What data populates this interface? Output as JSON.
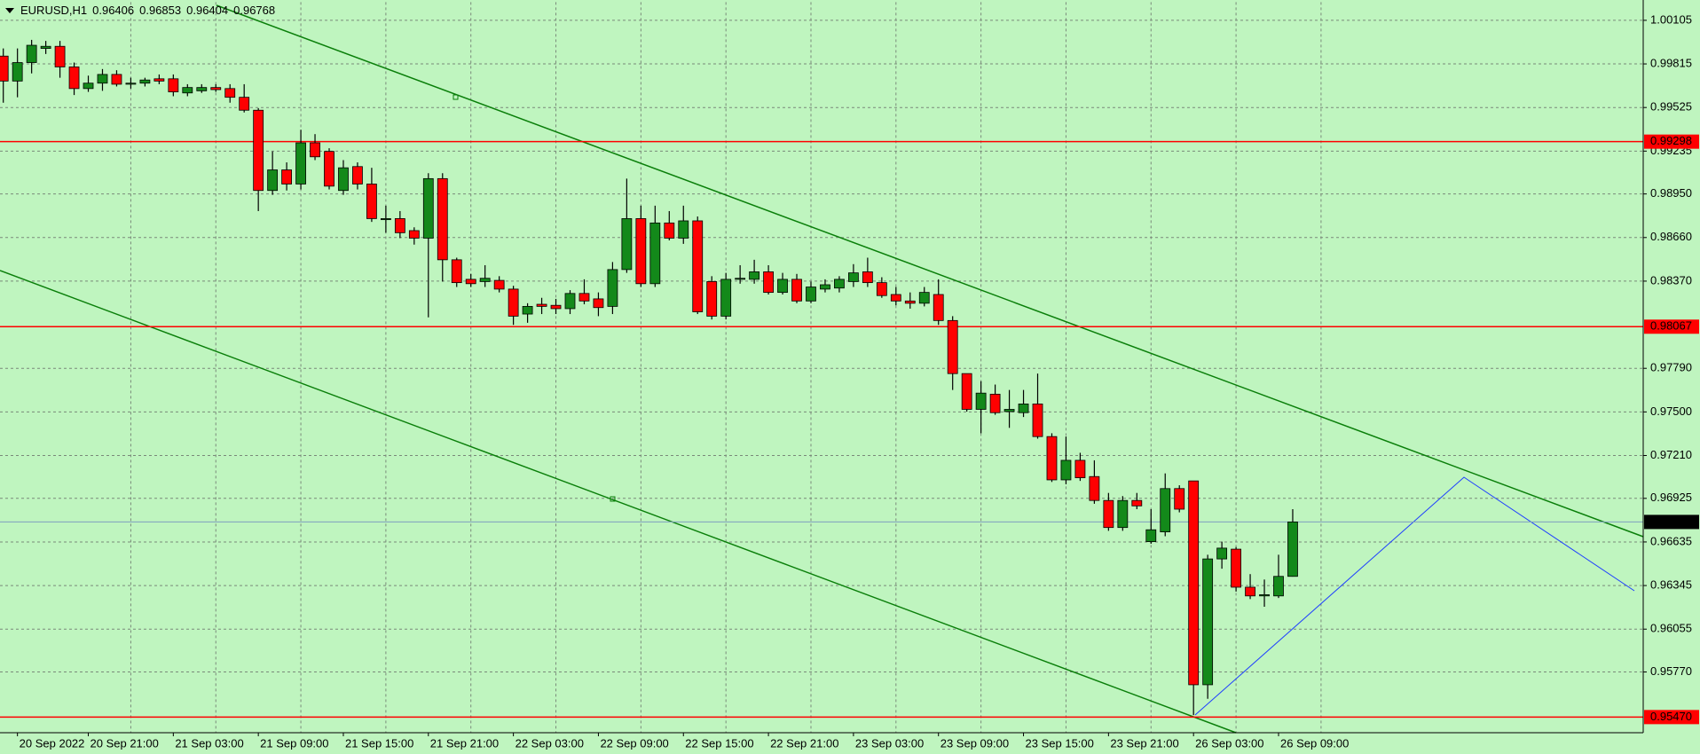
{
  "chart_data": {
    "type": "candlestick",
    "title": "EURUSD,H1",
    "categories": [
      null,
      "20 Sep 2022",
      null,
      null,
      null,
      null,
      "20 Sep 21:00",
      null,
      null,
      null,
      null,
      null,
      "21 Sep 03:00",
      null,
      null,
      null,
      null,
      null,
      "21 Sep 09:00",
      null,
      null,
      null,
      null,
      null,
      "21 Sep 15:00",
      null,
      null,
      null,
      null,
      null,
      "21 Sep 21:00",
      null,
      null,
      null,
      null,
      null,
      "22 Sep 03:00",
      null,
      null,
      null,
      null,
      null,
      "22 Sep 09:00",
      null,
      null,
      null,
      null,
      null,
      "22 Sep 15:00",
      null,
      null,
      null,
      null,
      null,
      "22 Sep 21:00",
      null,
      null,
      null,
      null,
      null,
      "23 Sep 03:00",
      null,
      null,
      null,
      null,
      null,
      "23 Sep 09:00",
      null,
      null,
      null,
      null,
      null,
      "23 Sep 15:00",
      null,
      null,
      null,
      null,
      null,
      "23 Sep 21:00",
      null,
      null,
      null,
      null,
      null,
      "26 Sep 03:00",
      null,
      null,
      null,
      null,
      null,
      "26 Sep 09:00",
      null
    ],
    "open": [
      0.99867,
      0.99701,
      0.99824,
      0.99918,
      0.99932,
      0.99795,
      0.99651,
      0.99687,
      0.99745,
      0.9968,
      0.99687,
      0.99716,
      0.99716,
      0.99622,
      0.99636,
      0.99658,
      0.99651,
      0.99593,
      0.99507,
      0.98973,
      0.9911,
      0.99016,
      0.9929,
      0.99233,
      0.98973,
      0.99132,
      0.99016,
      0.98786,
      0.98786,
      0.98706,
      0.98656,
      0.99052,
      0.98512,
      0.98382,
      0.98367,
      0.98375,
      0.98317,
      0.98151,
      0.98216,
      0.98209,
      0.98187,
      0.98288,
      0.98252,
      0.98202,
      0.98447,
      0.98786,
      0.98353,
      0.98757,
      0.98656,
      0.98771,
      0.98367,
      0.98137,
      0.98382,
      0.98382,
      0.98432,
      0.98295,
      0.98382,
      0.98238,
      0.98317,
      0.98324,
      0.98367,
      0.98432,
      0.9836,
      0.98281,
      0.98238,
      0.98223,
      0.98281,
      0.98108,
      0.97755,
      0.97517,
      0.97618,
      0.97502,
      0.97495,
      0.97553,
      0.97336,
      0.97048,
      0.97178,
      0.9707,
      0.96911,
      0.96731,
      0.96911,
      0.96637,
      0.96702,
      0.9699,
      0.97041,
      0.95685,
      0.96522,
      0.96587,
      0.96334,
      0.96276,
      0.96276,
      0.96406
    ],
    "high": [
      0.99918,
      0.99918,
      0.99975,
      0.99968,
      0.99968,
      0.99824,
      0.99737,
      0.99781,
      0.99773,
      0.99723,
      0.99723,
      0.99745,
      0.99745,
      0.9968,
      0.9968,
      0.9968,
      0.9968,
      0.9968,
      0.99521,
      0.99233,
      0.9916,
      0.99377,
      0.99348,
      0.99254,
      0.99175,
      0.9916,
      0.99124,
      0.98872,
      0.98836,
      0.98728,
      0.99088,
      0.99088,
      0.98526,
      0.98418,
      0.98476,
      0.98403,
      0.98339,
      0.98223,
      0.98259,
      0.98252,
      0.9831,
      0.98382,
      0.98295,
      0.98497,
      0.99052,
      0.98872,
      0.98872,
      0.98836,
      0.98872,
      0.988,
      0.98403,
      0.98425,
      0.98476,
      0.98512,
      0.98476,
      0.98425,
      0.98418,
      0.98367,
      0.98382,
      0.98403,
      0.98483,
      0.98526,
      0.98396,
      0.98331,
      0.98295,
      0.98331,
      0.98382,
      0.98137,
      0.97755,
      0.97704,
      0.97682,
      0.97646,
      0.97646,
      0.97755,
      0.97358,
      0.97336,
      0.97228,
      0.97178,
      0.96961,
      0.9694,
      0.96961,
      0.96853,
      0.97091,
      0.97012,
      0.97041,
      0.9655,
      0.96637,
      0.96601,
      0.96421,
      0.96385,
      0.9655,
      0.96853
    ],
    "low": [
      0.99557,
      0.99593,
      0.99752,
      0.99881,
      0.99723,
      0.99608,
      0.99629,
      0.99636,
      0.99665,
      0.99651,
      0.99665,
      0.9968,
      0.996,
      0.996,
      0.99622,
      0.99629,
      0.99557,
      0.99492,
      0.98836,
      0.98944,
      0.98973,
      0.9898,
      0.99175,
      0.9898,
      0.98944,
      0.9898,
      0.98764,
      0.98692,
      0.98656,
      0.98613,
      0.98129,
      0.98367,
      0.98331,
      0.98331,
      0.98331,
      0.98295,
      0.98079,
      0.98093,
      0.98151,
      0.98151,
      0.98151,
      0.98216,
      0.98137,
      0.98151,
      0.98425,
      0.98331,
      0.98331,
      0.98641,
      0.98618,
      0.98151,
      0.98115,
      0.98115,
      0.98353,
      0.98353,
      0.98281,
      0.98281,
      0.98223,
      0.98223,
      0.98295,
      0.98295,
      0.98331,
      0.98331,
      0.98259,
      0.98209,
      0.98187,
      0.98202,
      0.98079,
      0.97646,
      0.97502,
      0.97358,
      0.97481,
      0.97394,
      0.97466,
      0.97322,
      0.97034,
      0.97019,
      0.97041,
      0.96889,
      0.96709,
      0.96709,
      0.96853,
      0.96623,
      0.96673,
      0.96832,
      0.95483,
      0.95592,
      0.96457,
      0.96305,
      0.96255,
      0.96204,
      0.96262,
      0.96404
    ],
    "close": [
      0.99701,
      0.99824,
      0.99939,
      0.99932,
      0.99795,
      0.99651,
      0.99687,
      0.99745,
      0.9968,
      0.99687,
      0.99708,
      0.99701,
      0.99629,
      0.99658,
      0.99658,
      0.99644,
      0.99593,
      0.99507,
      0.98973,
      0.9911,
      0.99016,
      0.9929,
      0.99197,
      0.99002,
      0.99124,
      0.99016,
      0.98786,
      0.98786,
      0.98692,
      0.98656,
      0.99052,
      0.98512,
      0.9836,
      0.98353,
      0.98389,
      0.98317,
      0.98137,
      0.98202,
      0.98202,
      0.98187,
      0.98288,
      0.98238,
      0.98194,
      0.98447,
      0.98786,
      0.98353,
      0.98757,
      0.98656,
      0.98771,
      0.98166,
      0.98137,
      0.98382,
      0.98389,
      0.98432,
      0.98295,
      0.98382,
      0.98238,
      0.98331,
      0.98346,
      0.98382,
      0.98425,
      0.9836,
      0.98274,
      0.98238,
      0.98223,
      0.98295,
      0.98108,
      0.97755,
      0.97517,
      0.97625,
      0.97495,
      0.97517,
      0.97553,
      0.97336,
      0.97048,
      0.97178,
      0.97062,
      0.96911,
      0.96731,
      0.96911,
      0.96875,
      0.96716,
      0.9699,
      0.96853,
      0.95685,
      0.96522,
      0.96594,
      0.96334,
      0.96276,
      0.96284,
      0.96406,
      0.96768
    ],
    "up_color": "#13891a",
    "down_color": "#ff0000",
    "ylim": [
      0.95366,
      1.00226
    ],
    "yticks": [
      1.00105,
      0.99815,
      0.99525,
      0.99235,
      {
        "value": 0.9895,
        "label": "0.98950"
      },
      {
        "value": 0.9866,
        "label": "0.98660"
      },
      {
        "value": 0.9837,
        "label": "0.98370"
      },
      {
        "value": 0.9779,
        "label": "0.97790"
      },
      {
        "value": 0.975,
        "label": "0.97500"
      },
      {
        "value": 0.9721,
        "label": "0.97210"
      },
      0.96925,
      0.96635,
      0.96345,
      0.96055,
      {
        "value": 0.9577,
        "label": "0.95770"
      }
    ],
    "grid": true,
    "levels": [
      {
        "value": 0.99298,
        "color": "#ff0000"
      },
      {
        "value": 0.98067,
        "color": "#ff0000"
      },
      {
        "value": 0.9547,
        "label": "0.95470",
        "color": "#ff0000"
      }
    ],
    "last_price_color": "#7f9fbf"
  }
}
